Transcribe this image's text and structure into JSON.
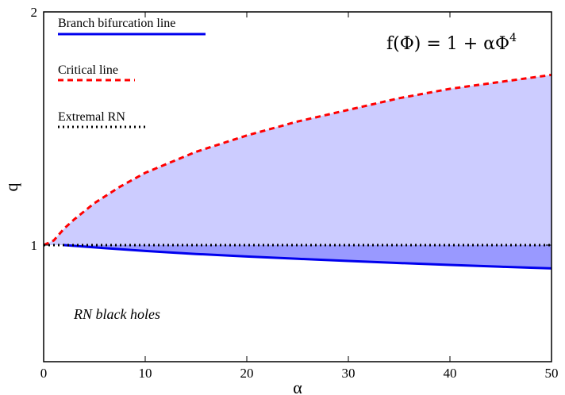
{
  "chart_data": {
    "type": "area",
    "xlabel": "α",
    "ylabel": "q",
    "xlim": [
      0,
      50
    ],
    "ylim": [
      0.5,
      2
    ],
    "x_ticks": [
      0,
      10,
      20,
      30,
      40,
      50
    ],
    "y_ticks": [
      1,
      2
    ],
    "y_tick_labels": [
      "1",
      "2"
    ],
    "grid": false,
    "legend_position": "top-left",
    "formula": {
      "lhs": "f(Φ) = 1 + αΦ",
      "exponent": "4"
    },
    "annotations": [
      {
        "text": "RN black holes",
        "x": 3,
        "y": 0.61
      }
    ],
    "series": [
      {
        "name": "Branch bifurcation line",
        "style": "solid",
        "color": "#0000ee",
        "x": [
          2,
          5,
          10,
          15,
          20,
          25,
          30,
          35,
          40,
          45,
          50
        ],
        "y": [
          1.0,
          0.99,
          0.975,
          0.962,
          0.951,
          0.941,
          0.932,
          0.923,
          0.915,
          0.907,
          0.9
        ]
      },
      {
        "name": "Critical line",
        "style": "dashed",
        "color": "#ff0000",
        "x": [
          0,
          1,
          2,
          3,
          5,
          7.5,
          10,
          15,
          20,
          25,
          30,
          35,
          40,
          45,
          50
        ],
        "y": [
          1.0,
          1.02,
          1.07,
          1.11,
          1.18,
          1.25,
          1.31,
          1.4,
          1.47,
          1.53,
          1.58,
          1.63,
          1.67,
          1.7,
          1.73
        ]
      },
      {
        "name": "Extremal RN",
        "style": "dotted",
        "color": "#000000",
        "x": [
          0,
          50
        ],
        "y": [
          1.0,
          1.0
        ]
      }
    ],
    "fills": [
      {
        "between": [
          "Extremal RN",
          "Critical line"
        ],
        "color": "#ccccff"
      },
      {
        "between": [
          "Branch bifurcation line",
          "Extremal RN"
        ],
        "color": "#9999ff"
      }
    ]
  }
}
